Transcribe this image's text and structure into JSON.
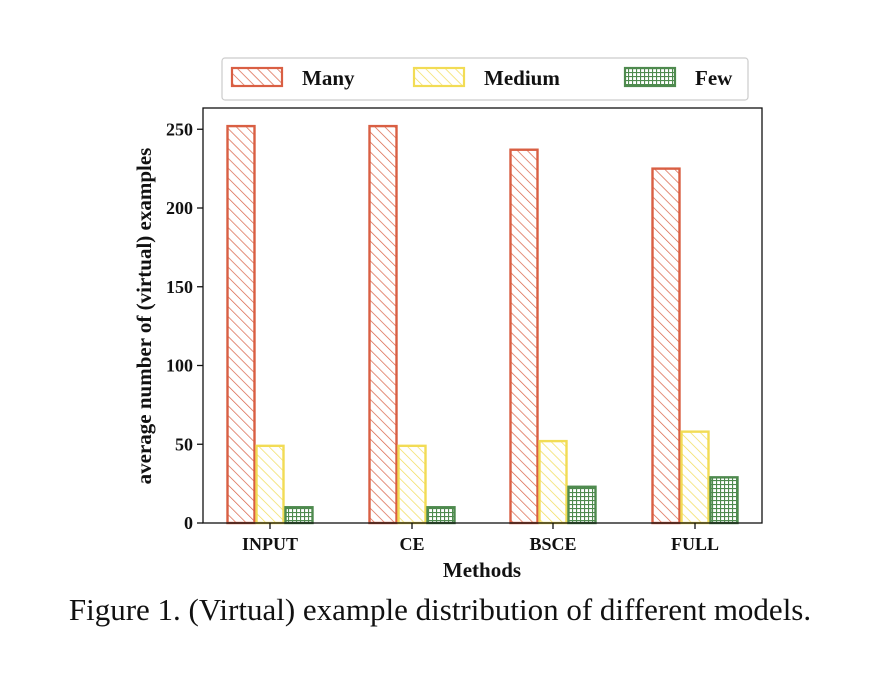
{
  "chart_data": {
    "type": "bar",
    "categories": [
      "INPUT",
      "CE",
      "BSCE",
      "FULL"
    ],
    "series": [
      {
        "name": "Many",
        "values": [
          252,
          252,
          237,
          225
        ],
        "color": "#d95f43",
        "pattern": "diagonal-hatch"
      },
      {
        "name": "Medium",
        "values": [
          49,
          49,
          52,
          58
        ],
        "color": "#f2dc55",
        "pattern": "diagonal-hatch"
      },
      {
        "name": "Few",
        "values": [
          10,
          10,
          23,
          29
        ],
        "color": "#4e8a4e",
        "pattern": "grid-hatch"
      }
    ],
    "xlabel": "Methods",
    "ylabel": "average number of (virtual) examples",
    "ylim": [
      0,
      265
    ],
    "yticks": [
      "0",
      "50",
      "100",
      "150",
      "200",
      "250"
    ],
    "legend_position": "top",
    "grid": false
  },
  "caption": "Figure 1. (Virtual) example distribution of different models."
}
